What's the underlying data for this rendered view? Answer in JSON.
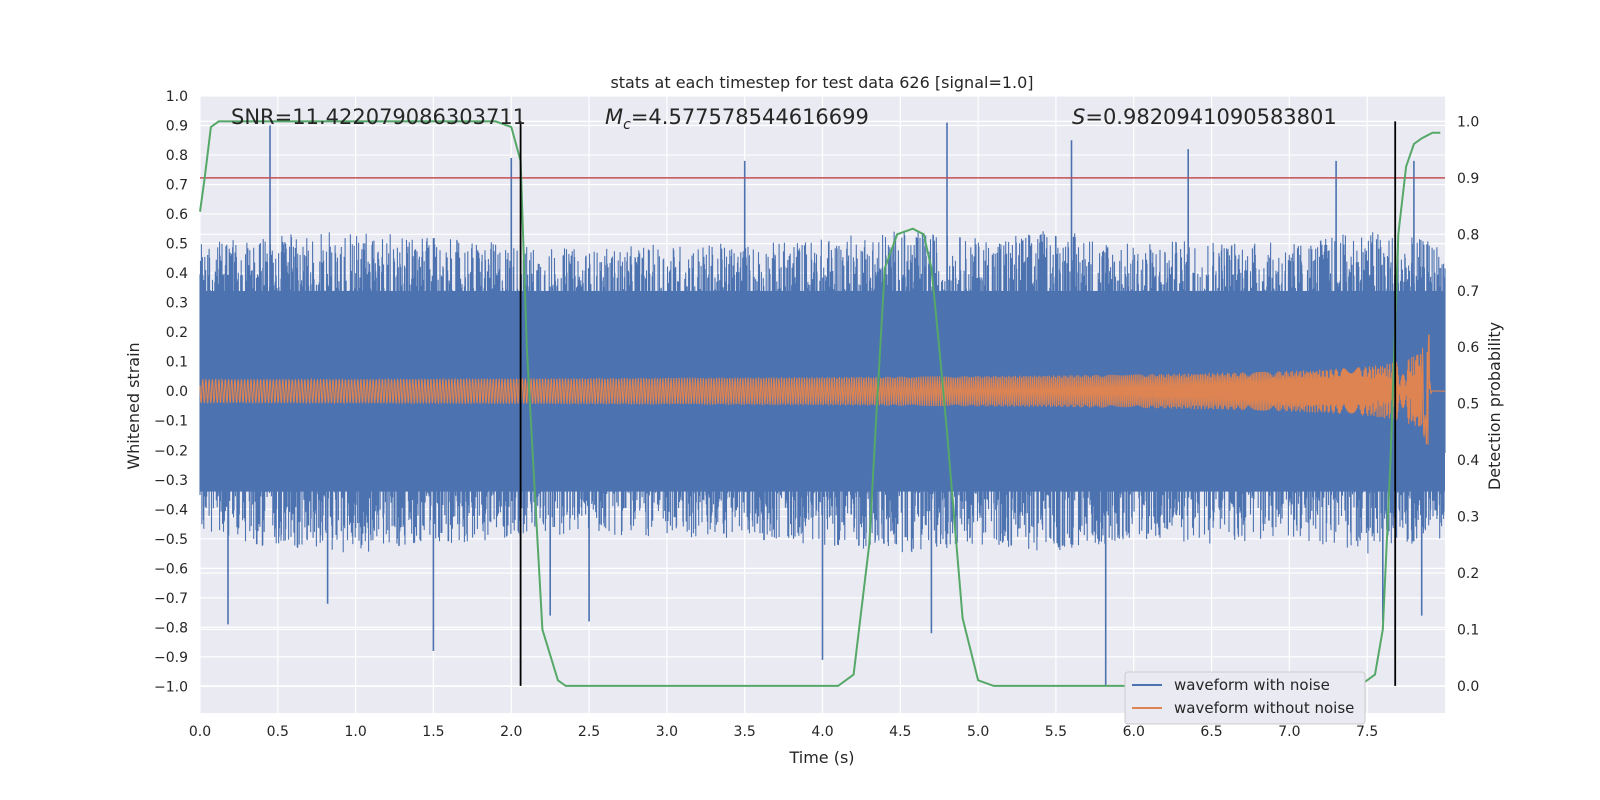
{
  "chart_data": {
    "type": "line",
    "title": "stats at each timestep for test data 626 [signal=1.0]",
    "xlabel": "Time (s)",
    "ylabel_left": "Whitened strain",
    "ylabel_right": "Detection probability",
    "xlim": [
      0.0,
      8.0
    ],
    "ylim_left": [
      -1.09,
      1.0
    ],
    "ylim_right": [
      -0.048,
      1.045
    ],
    "x_ticks": [
      "0.0",
      "0.5",
      "1.0",
      "1.5",
      "2.0",
      "2.5",
      "3.0",
      "3.5",
      "4.0",
      "4.5",
      "5.0",
      "5.5",
      "6.0",
      "6.5",
      "7.0",
      "7.5"
    ],
    "y_ticks_left": [
      "1.0",
      "0.9",
      "0.8",
      "0.7",
      "0.6",
      "0.5",
      "0.4",
      "0.3",
      "0.2",
      "0.1",
      "0.0",
      "−0.1",
      "−0.2",
      "−0.3",
      "−0.4",
      "−0.5",
      "−0.6",
      "−0.7",
      "−0.8",
      "−0.9",
      "−1.0"
    ],
    "y_ticks_right": [
      "1.0",
      "0.9",
      "0.8",
      "0.7",
      "0.6",
      "0.5",
      "0.4",
      "0.3",
      "0.2",
      "0.1",
      "0.0"
    ],
    "annotations": {
      "snr": "SNR=11.422079086303711",
      "mc_symbol": "M",
      "mc_sub": "c",
      "mc_value": "=4.577578544616699",
      "s_symbol": "S",
      "s_value": "=0.9820941090583801"
    },
    "threshold_right": 0.9,
    "vertical_markers": [
      2.06,
      7.68
    ],
    "noise_envelope": {
      "points": [
        [
          0.0,
          0.5
        ],
        [
          0.5,
          0.53
        ],
        [
          1.0,
          0.55
        ],
        [
          1.5,
          0.52
        ],
        [
          2.0,
          0.5
        ],
        [
          2.5,
          0.48
        ],
        [
          3.0,
          0.5
        ],
        [
          3.5,
          0.5
        ],
        [
          4.0,
          0.52
        ],
        [
          4.5,
          0.55
        ],
        [
          5.0,
          0.52
        ],
        [
          5.5,
          0.55
        ],
        [
          6.0,
          0.5
        ],
        [
          6.5,
          0.52
        ],
        [
          7.0,
          0.5
        ],
        [
          7.5,
          0.55
        ],
        [
          8.0,
          0.5
        ]
      ],
      "spikes": [
        [
          0.45,
          0.9
        ],
        [
          0.18,
          -0.79
        ],
        [
          0.82,
          -0.72
        ],
        [
          1.5,
          -0.88
        ],
        [
          2.0,
          0.79
        ],
        [
          2.25,
          -0.76
        ],
        [
          2.5,
          -0.78
        ],
        [
          3.5,
          0.78
        ],
        [
          4.0,
          -0.91
        ],
        [
          4.8,
          0.91
        ],
        [
          4.7,
          -0.82
        ],
        [
          5.6,
          0.85
        ],
        [
          5.82,
          -1.0
        ],
        [
          6.35,
          0.82
        ],
        [
          7.3,
          0.78
        ],
        [
          7.6,
          -0.78
        ],
        [
          7.8,
          0.78
        ],
        [
          7.85,
          -0.76
        ]
      ]
    },
    "clean_waveform": {
      "amp_start": 0.04,
      "amp_peak": 0.2,
      "merger_time": 7.9,
      "end_time": 7.92
    },
    "series": [
      {
        "name": "waveform with noise",
        "color": "#4c72b0",
        "axis": "left"
      },
      {
        "name": "waveform without noise",
        "color": "#dd8452",
        "axis": "left"
      },
      {
        "name": "detection probability",
        "color": "#55a868",
        "axis": "right",
        "x": [
          0.0,
          0.03,
          0.07,
          0.12,
          0.3,
          1.0,
          1.5,
          1.9,
          2.0,
          2.06,
          2.1,
          2.2,
          2.3,
          2.35,
          3.0,
          3.5,
          4.0,
          4.1,
          4.2,
          4.3,
          4.35,
          4.4,
          4.48,
          4.58,
          4.65,
          4.7,
          4.75,
          4.8,
          4.9,
          5.0,
          5.1,
          5.5,
          6.0,
          6.5,
          7.0,
          7.45,
          7.55,
          7.6,
          7.65,
          7.7,
          7.75,
          7.8,
          7.85,
          7.92,
          7.97
        ],
        "y": [
          0.84,
          0.9,
          0.99,
          1.0,
          1.0,
          1.0,
          1.0,
          1.0,
          0.99,
          0.93,
          0.6,
          0.1,
          0.01,
          0.0,
          0.0,
          0.0,
          0.0,
          0.0,
          0.02,
          0.25,
          0.5,
          0.74,
          0.8,
          0.81,
          0.8,
          0.74,
          0.6,
          0.45,
          0.12,
          0.01,
          0.0,
          0.0,
          0.0,
          0.0,
          0.0,
          0.0,
          0.02,
          0.1,
          0.4,
          0.8,
          0.92,
          0.96,
          0.97,
          0.98,
          0.98
        ]
      }
    ],
    "legend": {
      "location": "lower-right",
      "entries": [
        "waveform with noise",
        "waveform without noise"
      ]
    }
  },
  "colors": {
    "plot_background": "#eaeaf2",
    "grid": "#ffffff",
    "threshold": "#c44e52",
    "marker": "#000000"
  }
}
